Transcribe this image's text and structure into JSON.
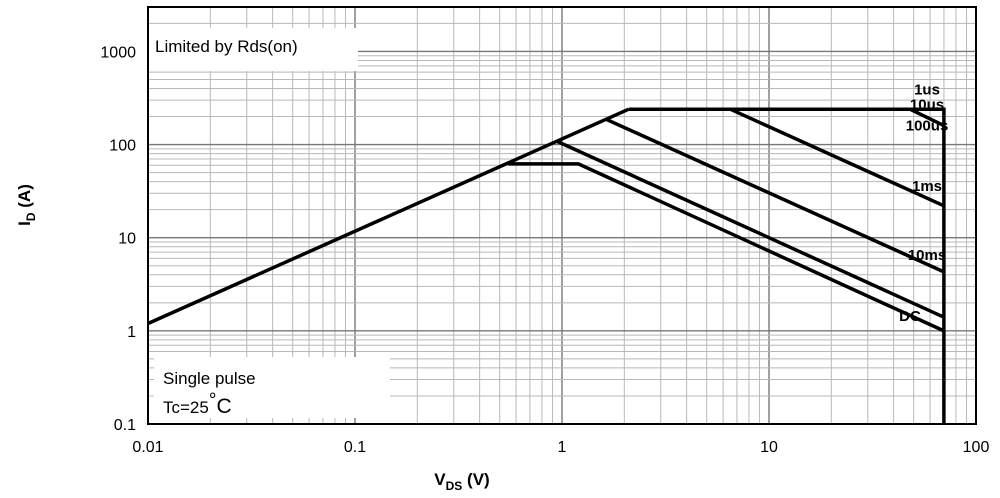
{
  "chart_data": {
    "type": "line",
    "scale": {
      "x": "log",
      "y": "log"
    },
    "grid": true,
    "xlim": [
      0.01,
      100
    ],
    "ylim": [
      0.1,
      3000
    ],
    "xlabel": {
      "main": "V",
      "sub": "DS",
      "unit": " (V)"
    },
    "ylabel": {
      "main": "I",
      "sub": "D",
      "unit": " (A)"
    },
    "x_ticks": [
      {
        "value": 0.01,
        "label": "0.01"
      },
      {
        "value": 0.1,
        "label": "0.1"
      },
      {
        "value": 1,
        "label": "1"
      },
      {
        "value": 10,
        "label": "10"
      },
      {
        "value": 100,
        "label": "100"
      }
    ],
    "y_ticks": [
      {
        "value": 0.1,
        "label": "0.1"
      },
      {
        "value": 1,
        "label": "1"
      },
      {
        "value": 10,
        "label": "10"
      },
      {
        "value": 100,
        "label": "100"
      },
      {
        "value": 1000,
        "label": "1000"
      }
    ],
    "annotations": {
      "limited": "Limited by Rds(on)",
      "single_pulse": "Single pulse",
      "tc": "Tc=25",
      "degree": "°",
      "celsius": "C"
    },
    "rds_on_line": {
      "x": [
        0.01,
        2.1
      ],
      "y": [
        1.2,
        240
      ]
    },
    "series": [
      {
        "name": "1us",
        "x": [
          2.1,
          70,
          70
        ],
        "y": [
          240,
          240,
          0.1
        ],
        "label_at": [
          58,
          390
        ]
      },
      {
        "name": "10us",
        "x": [
          48,
          70
        ],
        "y": [
          240,
          160
        ],
        "label_at": [
          58,
          270
        ]
      },
      {
        "name": "100us",
        "x": [
          6.5,
          70
        ],
        "y": [
          240,
          22
        ],
        "label_at": [
          58,
          160
        ]
      },
      {
        "name": "1ms",
        "x": [
          1.65,
          70
        ],
        "y": [
          185,
          4.3
        ],
        "label_at": [
          58,
          36
        ]
      },
      {
        "name": "10ms",
        "x": [
          0.95,
          70
        ],
        "y": [
          108,
          1.4
        ],
        "label_at": [
          58,
          6.5
        ]
      },
      {
        "name": "DC",
        "x": [
          0.55,
          1.2,
          70
        ],
        "y": [
          62,
          62,
          1.0
        ],
        "label_at": [
          48,
          1.45
        ]
      }
    ]
  }
}
